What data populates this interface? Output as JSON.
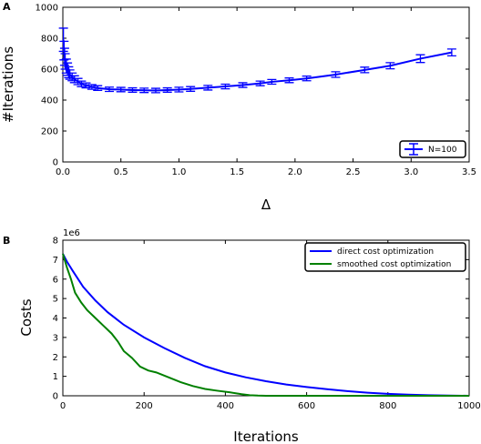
{
  "chart_data": [
    {
      "type": "line",
      "panel_label": "A",
      "title": "",
      "xlabel": "Δ",
      "ylabel": "#Iterations",
      "xlim": [
        0,
        3.5
      ],
      "ylim": [
        0,
        1000
      ],
      "x_ticks": [
        0,
        0.5,
        1,
        1.5,
        2,
        2.5,
        3,
        3.5
      ],
      "x_tick_labels": [
        "0.0",
        "0.5",
        "1.0",
        "1.5",
        "2.0",
        "2.5",
        "3.0",
        "3.5"
      ],
      "y_ticks": [
        0,
        200,
        400,
        600,
        800,
        1000
      ],
      "y_tick_labels": [
        "0",
        "200",
        "400",
        "600",
        "800",
        "1000"
      ],
      "grid": false,
      "legend_position": "bottom-right",
      "error_bars": true,
      "series": [
        {
          "name": "N=100",
          "color": "#0000ff",
          "points": [
            {
              "x": 0.005,
              "y": 790,
              "err": 75
            },
            {
              "x": 0.01,
              "y": 720,
              "err": 60
            },
            {
              "x": 0.015,
              "y": 680,
              "err": 55
            },
            {
              "x": 0.02,
              "y": 650,
              "err": 50
            },
            {
              "x": 0.03,
              "y": 620,
              "err": 45
            },
            {
              "x": 0.04,
              "y": 600,
              "err": 40
            },
            {
              "x": 0.05,
              "y": 580,
              "err": 35
            },
            {
              "x": 0.06,
              "y": 565,
              "err": 30
            },
            {
              "x": 0.08,
              "y": 550,
              "err": 25
            },
            {
              "x": 0.1,
              "y": 535,
              "err": 22
            },
            {
              "x": 0.13,
              "y": 520,
              "err": 20
            },
            {
              "x": 0.16,
              "y": 505,
              "err": 18
            },
            {
              "x": 0.2,
              "y": 495,
              "err": 16
            },
            {
              "x": 0.25,
              "y": 485,
              "err": 15
            },
            {
              "x": 0.3,
              "y": 478,
              "err": 15
            },
            {
              "x": 0.4,
              "y": 470,
              "err": 14
            },
            {
              "x": 0.5,
              "y": 468,
              "err": 14
            },
            {
              "x": 0.6,
              "y": 465,
              "err": 14
            },
            {
              "x": 0.7,
              "y": 463,
              "err": 14
            },
            {
              "x": 0.8,
              "y": 462,
              "err": 14
            },
            {
              "x": 0.9,
              "y": 465,
              "err": 14
            },
            {
              "x": 1.0,
              "y": 468,
              "err": 15
            },
            {
              "x": 1.1,
              "y": 472,
              "err": 15
            },
            {
              "x": 1.25,
              "y": 480,
              "err": 15
            },
            {
              "x": 1.4,
              "y": 488,
              "err": 15
            },
            {
              "x": 1.55,
              "y": 497,
              "err": 15
            },
            {
              "x": 1.7,
              "y": 508,
              "err": 15
            },
            {
              "x": 1.8,
              "y": 518,
              "err": 15
            },
            {
              "x": 1.95,
              "y": 528,
              "err": 15
            },
            {
              "x": 2.1,
              "y": 540,
              "err": 15
            },
            {
              "x": 2.35,
              "y": 565,
              "err": 18
            },
            {
              "x": 2.6,
              "y": 595,
              "err": 18
            },
            {
              "x": 2.82,
              "y": 622,
              "err": 20
            },
            {
              "x": 3.08,
              "y": 668,
              "err": 25
            },
            {
              "x": 3.35,
              "y": 708,
              "err": 22
            }
          ]
        }
      ]
    },
    {
      "type": "line",
      "panel_label": "B",
      "title": "",
      "xlabel": "Iterations",
      "ylabel": "Costs",
      "y_multiplier_label": "1e6",
      "xlim": [
        0,
        1000
      ],
      "ylim": [
        0,
        8
      ],
      "x_ticks": [
        0,
        200,
        400,
        600,
        800,
        1000
      ],
      "x_tick_labels": [
        "0",
        "200",
        "400",
        "600",
        "800",
        "1000"
      ],
      "y_ticks": [
        0,
        1,
        2,
        3,
        4,
        5,
        6,
        7,
        8
      ],
      "y_tick_labels": [
        "0",
        "1",
        "2",
        "3",
        "4",
        "5",
        "6",
        "7",
        "8"
      ],
      "grid": false,
      "legend_position": "top-right",
      "series": [
        {
          "name": "direct cost optimization",
          "color": "#0000ff",
          "x": [
            0,
            10,
            25,
            50,
            80,
            110,
            150,
            200,
            250,
            300,
            350,
            400,
            450,
            500,
            550,
            600,
            650,
            700,
            750,
            800,
            850,
            900,
            950,
            1000
          ],
          "y": [
            7.3,
            6.9,
            6.4,
            5.6,
            4.9,
            4.3,
            3.65,
            3.0,
            2.45,
            1.95,
            1.52,
            1.2,
            0.95,
            0.75,
            0.58,
            0.45,
            0.34,
            0.24,
            0.16,
            0.1,
            0.06,
            0.03,
            0.01,
            0.0
          ]
        },
        {
          "name": "smoothed cost optimization",
          "color": "#008000",
          "x": [
            0,
            10,
            20,
            30,
            45,
            60,
            80,
            100,
            120,
            135,
            150,
            170,
            190,
            210,
            230,
            260,
            290,
            320,
            350,
            380,
            410,
            440,
            460,
            480,
            500,
            550,
            600,
            700,
            800,
            1000
          ],
          "y": [
            7.3,
            6.6,
            6.0,
            5.3,
            4.8,
            4.4,
            4.0,
            3.6,
            3.2,
            2.8,
            2.3,
            1.95,
            1.5,
            1.3,
            1.2,
            0.95,
            0.7,
            0.5,
            0.35,
            0.26,
            0.18,
            0.08,
            0.03,
            0.01,
            0.0,
            0.0,
            0.0,
            0.0,
            0.0,
            0.0
          ]
        }
      ]
    }
  ]
}
